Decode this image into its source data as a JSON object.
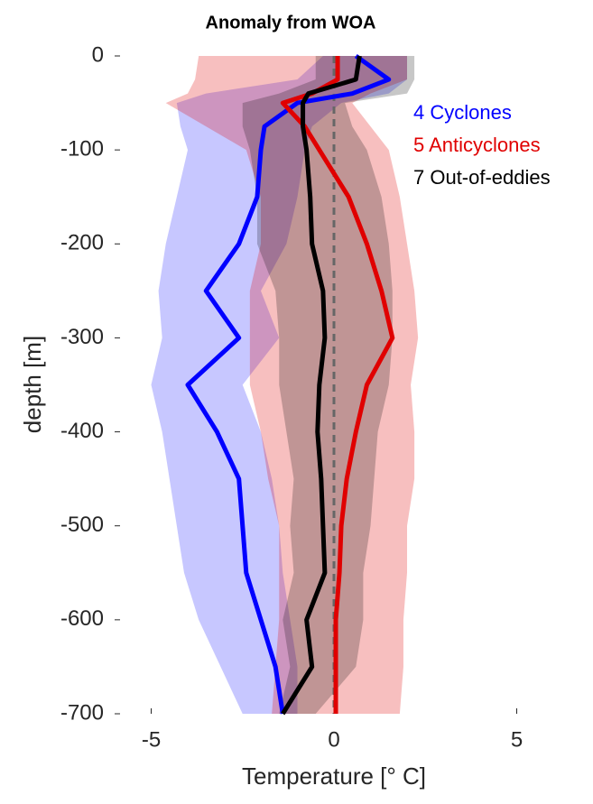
{
  "chart_data": {
    "type": "profile",
    "title": "Anomaly from WOA",
    "xlabel": "Temperature [° C]",
    "ylabel": "depth [m]",
    "xlim": [
      -6,
      6
    ],
    "ylim": [
      -700,
      0
    ],
    "xticks": [
      -5,
      0,
      5
    ],
    "yticks": [
      0,
      -100,
      -200,
      -300,
      -400,
      -500,
      -600,
      -700
    ],
    "vline": 0,
    "depth": [
      0,
      -25,
      -40,
      -50,
      -75,
      -100,
      -150,
      -200,
      -250,
      -300,
      -350,
      -400,
      -450,
      -500,
      -550,
      -600,
      -650,
      -700
    ],
    "series": [
      {
        "name": "4 Cyclones",
        "color": "#0000ff",
        "values": [
          0.6,
          1.5,
          0.5,
          -1.0,
          -1.9,
          -2.0,
          -2.1,
          -2.6,
          -3.5,
          -2.6,
          -4.0,
          -3.2,
          -2.6,
          -2.5,
          -2.4,
          -2.0,
          -1.6,
          -1.4
        ],
        "lower": [
          -0.3,
          -1.0,
          -3.5,
          -4.3,
          -4.2,
          -4.0,
          -4.3,
          -4.6,
          -4.8,
          -4.7,
          -5.0,
          -4.7,
          -4.5,
          -4.3,
          -4.1,
          -3.7,
          -3.1,
          -2.5
        ],
        "upper": [
          2.0,
          2.0,
          1.5,
          0.2,
          -0.6,
          -0.8,
          -1.0,
          -1.3,
          -2.0,
          -1.5,
          -2.5,
          -2.0,
          -1.7,
          -1.5,
          -1.4,
          -1.2,
          -1.0,
          -1.0
        ]
      },
      {
        "name": "5 Anticyclones",
        "color": "#e00000",
        "values": [
          0.1,
          0.1,
          -0.6,
          -1.4,
          -0.8,
          -0.4,
          0.4,
          0.9,
          1.3,
          1.6,
          0.9,
          0.6,
          0.35,
          0.2,
          0.15,
          0.05,
          0.05,
          0.05
        ],
        "lower": [
          -3.7,
          -3.8,
          -4.0,
          -4.6,
          -3.5,
          -2.4,
          -2.0,
          -2.0,
          -2.3,
          -2.3,
          -2.3,
          -2.0,
          -1.8,
          -1.5,
          -1.5,
          -1.5,
          -1.6,
          -1.7
        ],
        "upper": [
          2.0,
          2.0,
          1.0,
          0.5,
          1.0,
          1.5,
          1.8,
          2.0,
          2.2,
          2.3,
          2.1,
          2.2,
          2.2,
          2.0,
          2.0,
          1.9,
          1.9,
          1.8
        ]
      },
      {
        "name": "7 Out-of-eddies",
        "color": "#000000",
        "values": [
          0.7,
          0.6,
          -0.7,
          -0.85,
          -0.85,
          -0.75,
          -0.65,
          -0.6,
          -0.3,
          -0.25,
          -0.4,
          -0.45,
          -0.35,
          -0.3,
          -0.25,
          -0.75,
          -0.6,
          -1.4
        ],
        "lower": [
          -0.5,
          -0.5,
          -1.5,
          -2.5,
          -2.5,
          -2.3,
          -2.1,
          -2.1,
          -1.6,
          -1.5,
          -1.5,
          -1.3,
          -1.1,
          -1.2,
          -1.1,
          -1.4,
          -1.2,
          -1.5
        ],
        "upper": [
          2.2,
          2.2,
          2.0,
          0.3,
          0.5,
          0.9,
          1.3,
          1.5,
          1.6,
          1.6,
          1.5,
          1.2,
          1.1,
          1.0,
          0.8,
          0.8,
          0.6,
          -0.5
        ]
      }
    ]
  }
}
